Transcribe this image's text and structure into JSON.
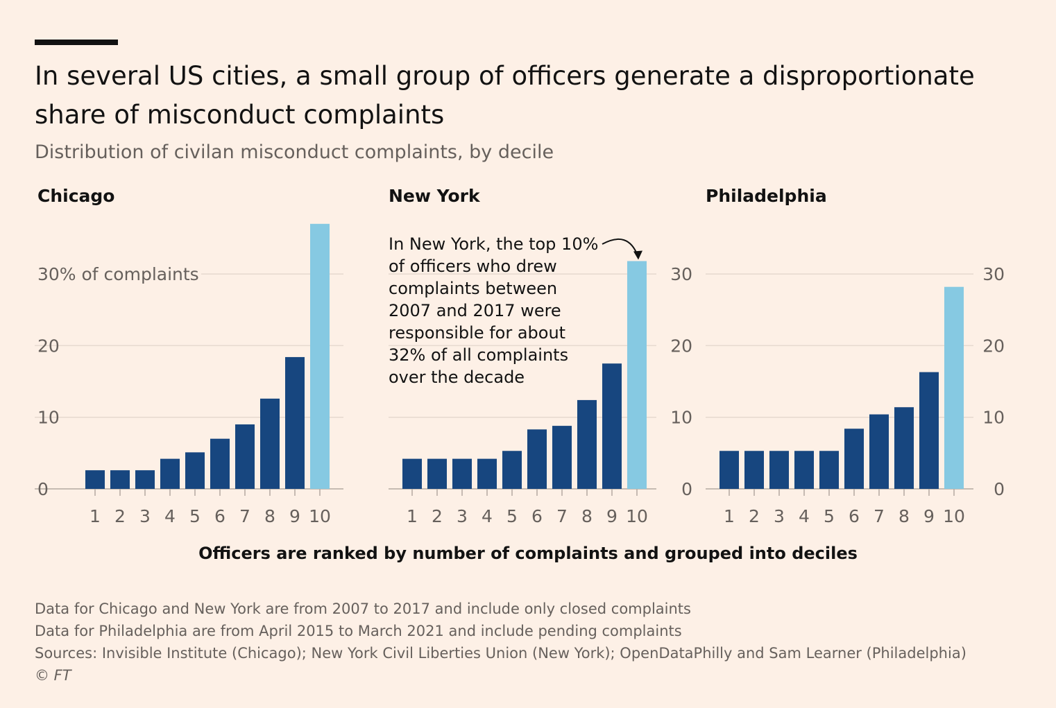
{
  "title": "In several US cities, a small group of officers generate a disproportionate share of misconduct complaints",
  "subtitle": "Distribution of civilan misconduct complaints, by decile",
  "colors": {
    "background": "#fdf0e6",
    "bar": "#17467f",
    "highlight": "#86c9e2",
    "grid": "#e6d9cf",
    "axis_text": "#66605c"
  },
  "x_axis_label": "Officers are ranked by number of complaints and grouped into deciles",
  "annotation": {
    "panel": "New York",
    "lines": [
      "In New York, the top 10%",
      "of officers who drew",
      "complaints between",
      "2007 and 2017 were",
      "responsible for about",
      "32% of all complaints",
      "over the decade"
    ]
  },
  "notes": [
    "Data for Chicago and New York are from 2007 to 2017 and include only closed complaints",
    "Data for Philadelphia are from April 2015 to March 2021 and include pending complaints",
    "Sources: Invisible Institute (Chicago); New York Civil Liberties Union (New York); OpenDataPhilly and Sam Learner (Philadelphia)"
  ],
  "copyright": "© FT",
  "chart_data": [
    {
      "type": "bar",
      "title": "Chicago",
      "categories": [
        "1",
        "2",
        "3",
        "4",
        "5",
        "6",
        "7",
        "8",
        "9",
        "10"
      ],
      "values": [
        2.6,
        2.6,
        2.6,
        4.2,
        5.1,
        7.0,
        9.0,
        12.6,
        18.4,
        37.0
      ],
      "highlight_index": 9,
      "ylim": [
        0,
        37
      ],
      "yticks": [
        0,
        10,
        20,
        30
      ],
      "ytick_labels": [
        "0",
        "10",
        "20",
        "30% of complaints"
      ],
      "ytick_side": "left",
      "grid": true
    },
    {
      "type": "bar",
      "title": "New York",
      "categories": [
        "1",
        "2",
        "3",
        "4",
        "5",
        "6",
        "7",
        "8",
        "9",
        "10"
      ],
      "values": [
        4.2,
        4.2,
        4.2,
        4.2,
        5.3,
        8.3,
        8.8,
        12.4,
        17.5,
        31.8
      ],
      "highlight_index": 9,
      "ylim": [
        0,
        37
      ],
      "yticks": [
        0,
        10,
        20,
        30
      ],
      "ytick_labels": [
        "0",
        "10",
        "20",
        "30"
      ],
      "ytick_side": "right",
      "grid": true
    },
    {
      "type": "bar",
      "title": "Philadelphia",
      "categories": [
        "1",
        "2",
        "3",
        "4",
        "5",
        "6",
        "7",
        "8",
        "9",
        "10"
      ],
      "values": [
        5.3,
        5.3,
        5.3,
        5.3,
        5.3,
        8.4,
        10.4,
        11.4,
        16.3,
        28.2
      ],
      "highlight_index": 9,
      "ylim": [
        0,
        37
      ],
      "yticks": [
        0,
        10,
        20,
        30
      ],
      "ytick_labels": [
        "0",
        "10",
        "20",
        "30"
      ],
      "ytick_side": "right",
      "grid": true
    }
  ]
}
